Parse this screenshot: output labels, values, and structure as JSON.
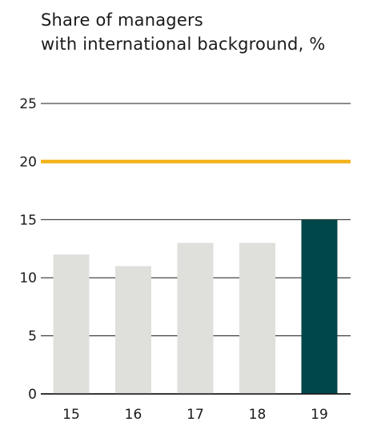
{
  "title_lines": [
    "Share of managers",
    "with international background, %"
  ],
  "chart_data": {
    "type": "bar",
    "title": "Share of managers with international background, %",
    "categories": [
      "15",
      "16",
      "17",
      "18",
      "19"
    ],
    "values": [
      12,
      11,
      13,
      13,
      15
    ],
    "ylim": [
      0,
      25
    ],
    "yticks": [
      0,
      5,
      10,
      15,
      20,
      25
    ],
    "target_line": 20,
    "grid": true,
    "colors": {
      "bar": "#dfe0db",
      "highlight_bar": "#00474a",
      "target_line": "#f2b21a",
      "grid": "#1a1a1a"
    },
    "highlight_index": 4
  }
}
